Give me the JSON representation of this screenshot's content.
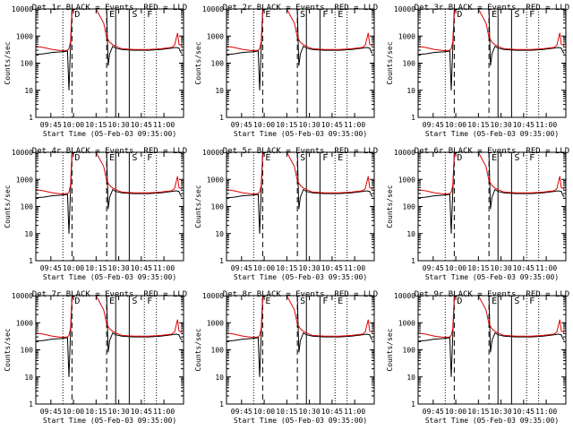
{
  "panel_titles": [
    "Det 1r BLACK = Events, RED = LLD",
    "Det 2r BLACK = Events, RED = LLD",
    "Det 3r BLACK = Events, RED = LLD",
    "Det 4r BLACK = Events, RED = LLD",
    "Det 5r BLACK = Events, RED = LLD",
    "Det 6r BLACK = Events, RED = LLD",
    "Det 7r BLACK = Events, RED = LLD",
    "Det 8r BLACK = Events, RED = LLD",
    "Det 9r BLACK = Events, RED = LLD"
  ],
  "colors": {
    "events": "#000000",
    "lld": "#e00000",
    "background": "#ffffff"
  },
  "chart_data": {
    "type": "line",
    "layout": "3x3 grid",
    "xlabel": "Start Time (05-Feb-03 09:35:00)",
    "ylabel": "Counts/sec",
    "y_scale": "log",
    "ylim": [
      1,
      10000
    ],
    "y_ticks": [
      1,
      10,
      100,
      1000,
      10000
    ],
    "y_tick_labels": [
      "1",
      "10",
      "100",
      "1000",
      "10000"
    ],
    "xlim": [
      "09:35",
      "11:13"
    ],
    "x_ticks": [
      "09:45",
      "10:00",
      "10:15",
      "10:30",
      "10:45",
      "11:00"
    ],
    "x_tick_labels": [
      "09:45",
      "10:00",
      "10:15",
      "10:30",
      "10:45",
      "11:00"
    ],
    "grid": false,
    "panels": [
      {
        "title_ref": 0,
        "time_labels": [
          "D",
          "E",
          "S",
          "F"
        ],
        "markers": [
          {
            "t": "09:53",
            "style": "dotted"
          },
          {
            "t": "09:59",
            "style": "dashed"
          },
          {
            "t": "10:22",
            "style": "dashed"
          },
          {
            "t": "10:28",
            "style": "solid"
          },
          {
            "t": "10:37",
            "style": "solid"
          },
          {
            "t": "10:47",
            "style": "dotted"
          },
          {
            "t": "10:55",
            "style": "dotted"
          }
        ]
      },
      {
        "title_ref": 1,
        "time_labels": [
          "E",
          "S",
          "F",
          "E"
        ],
        "markers": [
          {
            "t": "09:53",
            "style": "dotted"
          },
          {
            "t": "09:59",
            "style": "dashed"
          },
          {
            "t": "10:22",
            "style": "dashed"
          },
          {
            "t": "10:28",
            "style": "solid"
          },
          {
            "t": "10:37",
            "style": "solid"
          },
          {
            "t": "10:47",
            "style": "dotted"
          },
          {
            "t": "10:55",
            "style": "dotted"
          }
        ]
      },
      {
        "title_ref": 2,
        "time_labels": [
          "D",
          "E",
          "S",
          "F"
        ],
        "markers": [
          {
            "t": "09:53",
            "style": "dotted"
          },
          {
            "t": "09:59",
            "style": "dashed"
          },
          {
            "t": "10:22",
            "style": "dashed"
          },
          {
            "t": "10:28",
            "style": "solid"
          },
          {
            "t": "10:37",
            "style": "solid"
          },
          {
            "t": "10:47",
            "style": "dotted"
          },
          {
            "t": "10:55",
            "style": "dotted"
          }
        ]
      },
      {
        "title_ref": 3,
        "time_labels": [
          "D",
          "E",
          "S",
          "F"
        ],
        "markers": [
          {
            "t": "09:53",
            "style": "dotted"
          },
          {
            "t": "09:59",
            "style": "dashed"
          },
          {
            "t": "10:22",
            "style": "dashed"
          },
          {
            "t": "10:28",
            "style": "solid"
          },
          {
            "t": "10:37",
            "style": "solid"
          },
          {
            "t": "10:47",
            "style": "dotted"
          },
          {
            "t": "10:55",
            "style": "dotted"
          }
        ]
      },
      {
        "title_ref": 4,
        "time_labels": [
          "E",
          "S",
          "F",
          "E"
        ],
        "markers": [
          {
            "t": "09:53",
            "style": "dotted"
          },
          {
            "t": "09:59",
            "style": "dashed"
          },
          {
            "t": "10:22",
            "style": "dashed"
          },
          {
            "t": "10:28",
            "style": "solid"
          },
          {
            "t": "10:37",
            "style": "solid"
          },
          {
            "t": "10:47",
            "style": "dotted"
          },
          {
            "t": "10:55",
            "style": "dotted"
          }
        ]
      },
      {
        "title_ref": 5,
        "time_labels": [
          "D",
          "E",
          "S",
          "F"
        ],
        "markers": [
          {
            "t": "09:53",
            "style": "dotted"
          },
          {
            "t": "09:59",
            "style": "dashed"
          },
          {
            "t": "10:22",
            "style": "dashed"
          },
          {
            "t": "10:28",
            "style": "solid"
          },
          {
            "t": "10:37",
            "style": "solid"
          },
          {
            "t": "10:47",
            "style": "dotted"
          },
          {
            "t": "10:55",
            "style": "dotted"
          }
        ]
      },
      {
        "title_ref": 6,
        "time_labels": [
          "D",
          "E",
          "S",
          "F"
        ],
        "markers": [
          {
            "t": "09:53",
            "style": "dotted"
          },
          {
            "t": "09:59",
            "style": "dashed"
          },
          {
            "t": "10:22",
            "style": "dashed"
          },
          {
            "t": "10:28",
            "style": "solid"
          },
          {
            "t": "10:37",
            "style": "solid"
          },
          {
            "t": "10:47",
            "style": "dotted"
          },
          {
            "t": "10:55",
            "style": "dotted"
          }
        ]
      },
      {
        "title_ref": 7,
        "time_labels": [
          "E",
          "S",
          "F",
          "E"
        ],
        "markers": [
          {
            "t": "09:53",
            "style": "dotted"
          },
          {
            "t": "09:59",
            "style": "dashed"
          },
          {
            "t": "10:22",
            "style": "dashed"
          },
          {
            "t": "10:28",
            "style": "solid"
          },
          {
            "t": "10:37",
            "style": "solid"
          },
          {
            "t": "10:47",
            "style": "dotted"
          },
          {
            "t": "10:55",
            "style": "dotted"
          }
        ]
      },
      {
        "title_ref": 8,
        "time_labels": [
          "D",
          "E",
          "S",
          "F"
        ],
        "markers": [
          {
            "t": "09:53",
            "style": "dotted"
          },
          {
            "t": "09:59",
            "style": "dashed"
          },
          {
            "t": "10:22",
            "style": "dashed"
          },
          {
            "t": "10:28",
            "style": "solid"
          },
          {
            "t": "10:37",
            "style": "solid"
          },
          {
            "t": "10:47",
            "style": "dotted"
          },
          {
            "t": "10:55",
            "style": "dotted"
          }
        ]
      }
    ],
    "series": [
      {
        "legend_ref": "BLACK = Events",
        "color": "#000000",
        "x": [
          "09:35",
          "09:40",
          "09:46",
          "09:52",
          "09:56",
          "09:57",
          "09:58",
          "09:59",
          "10:00",
          "10:22",
          "10:23",
          "10:24",
          "10:26",
          "10:28",
          "10:32",
          "10:40",
          "10:50",
          "10:58",
          "11:05",
          "11:08",
          "11:10",
          "11:11",
          "11:12"
        ],
        "y": [
          210,
          220,
          250,
          260,
          280,
          10,
          330,
          9000,
          10000,
          10000,
          80,
          220,
          420,
          360,
          320,
          300,
          300,
          320,
          360,
          380,
          360,
          260,
          230
        ]
      },
      {
        "legend_ref": "RED = LLD",
        "color": "#e00000",
        "x": [
          "09:35",
          "09:40",
          "09:46",
          "09:52",
          "09:56",
          "09:57",
          "09:58",
          "09:59",
          "10:00",
          "10:15",
          "10:20",
          "10:22",
          "10:24",
          "10:26",
          "10:28",
          "10:32",
          "10:40",
          "10:50",
          "10:58",
          "11:05",
          "11:07",
          "11:09",
          "11:10",
          "11:12"
        ],
        "y": [
          420,
          380,
          320,
          290,
          300,
          340,
          600,
          8000,
          10000,
          10000,
          3000,
          900,
          600,
          480,
          420,
          340,
          320,
          320,
          340,
          380,
          450,
          1300,
          500,
          440
        ]
      }
    ]
  }
}
